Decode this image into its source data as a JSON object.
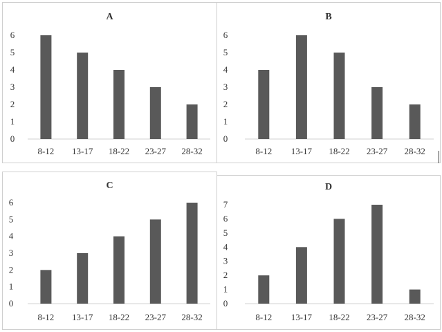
{
  "chart_data": [
    {
      "type": "bar",
      "title": "A",
      "categories": [
        "8-12",
        "13-17",
        "18-22",
        "23-27",
        "28-32"
      ],
      "values": [
        6,
        5,
        4,
        3,
        2
      ],
      "yticks": [
        "0",
        "1",
        "2",
        "3",
        "4",
        "5",
        "6"
      ],
      "ylim": [
        0,
        6
      ],
      "grid": false
    },
    {
      "type": "bar",
      "title": "B",
      "categories": [
        "8-12",
        "13-17",
        "18-22",
        "23-27",
        "28-32"
      ],
      "values": [
        4,
        6,
        5,
        3,
        2
      ],
      "yticks": [
        "0",
        "1",
        "2",
        "3",
        "4",
        "5",
        "6"
      ],
      "ylim": [
        0,
        6
      ],
      "grid": false
    },
    {
      "type": "bar",
      "title": "C",
      "categories": [
        "8-12",
        "13-17",
        "18-22",
        "23-27",
        "28-32"
      ],
      "values": [
        2,
        3,
        4,
        5,
        6
      ],
      "yticks": [
        "0",
        "1",
        "2",
        "3",
        "4",
        "5",
        "6"
      ],
      "ylim": [
        0,
        6
      ],
      "grid": false
    },
    {
      "type": "bar",
      "title": "D",
      "categories": [
        "8-12",
        "13-17",
        "18-22",
        "23-27",
        "28-32"
      ],
      "values": [
        2,
        4,
        6,
        7,
        1
      ],
      "yticks": [
        "0",
        "1",
        "2",
        "3",
        "4",
        "5",
        "6",
        "7"
      ],
      "ylim": [
        0,
        7
      ],
      "grid": false
    }
  ],
  "colors": {
    "bar": "#595959",
    "axis": "#d0d0d0",
    "text": "#333333"
  }
}
